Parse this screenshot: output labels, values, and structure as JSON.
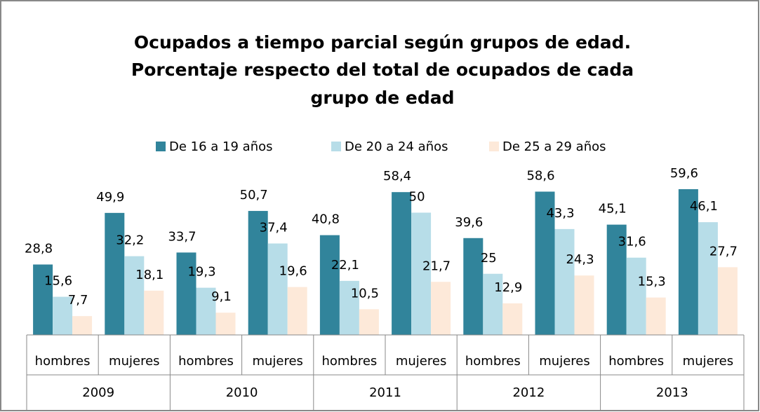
{
  "chart_data": {
    "type": "bar",
    "title": [
      "Ocupados a tiempo parcial según grupos de edad.",
      "Porcentaje respecto del total de ocupados de cada",
      "grupo de edad"
    ],
    "categories": [
      "hombres",
      "mujeres",
      "hombres",
      "mujeres",
      "hombres",
      "mujeres",
      "hombres",
      "mujeres",
      "hombres",
      "mujeres"
    ],
    "category_groups": [
      "2009",
      "2010",
      "2011",
      "2012",
      "2013"
    ],
    "series": [
      {
        "name": "De 16 a 19 años",
        "color": "#31849b",
        "values": [
          28.8,
          49.9,
          33.7,
          50.7,
          40.8,
          58.4,
          39.6,
          58.6,
          45.1,
          59.6
        ],
        "value_labels": [
          "28,8",
          "49,9",
          "33,7",
          "50,7",
          "40,8",
          "58,4",
          "39,6",
          "58,6",
          "45,1",
          "59,6"
        ]
      },
      {
        "name": "De 20 a 24 años",
        "color": "#b7dde8",
        "values": [
          15.6,
          32.2,
          19.3,
          37.4,
          22.1,
          50,
          25,
          43.3,
          31.6,
          46.1
        ],
        "value_labels": [
          "15,6",
          "32,2",
          "19,3",
          "37,4",
          "22,1",
          "50",
          "25",
          "43,3",
          "31,6",
          "46,1"
        ]
      },
      {
        "name": "De 25 a 29 años",
        "color": "#fde9d9",
        "values": [
          7.7,
          18.1,
          9.1,
          19.6,
          10.5,
          21.7,
          12.9,
          24.3,
          15.3,
          27.7
        ],
        "value_labels": [
          "7,7",
          "18,1",
          "9,1",
          "19,6",
          "10,5",
          "21,7",
          "12,9",
          "24,3",
          "15,3",
          "27,7"
        ]
      }
    ],
    "legend": "top"
  }
}
